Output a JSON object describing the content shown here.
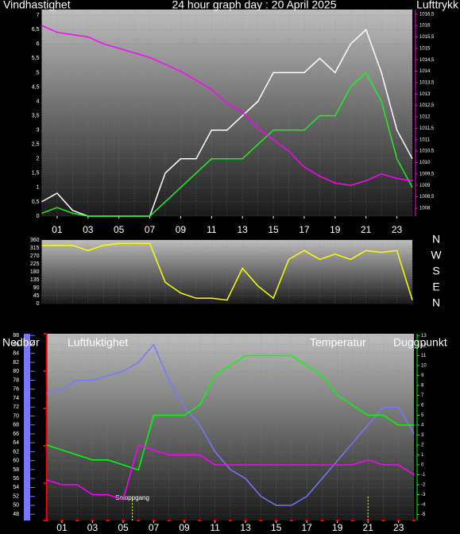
{
  "chart_data": [
    {
      "type": "line",
      "title": "24 hour graph day : 20 April 2025",
      "y_label": "Vindhastighet",
      "y2_label": "Lufttrykk",
      "x": [
        0,
        1,
        2,
        3,
        4,
        5,
        6,
        7,
        8,
        9,
        10,
        11,
        12,
        13,
        14,
        15,
        16,
        17,
        18,
        19,
        20,
        21,
        22,
        23,
        24
      ],
      "xlim": [
        0,
        24
      ],
      "xticks": [
        {
          "value": 1,
          "label": "01"
        },
        {
          "value": 3,
          "label": "03"
        },
        {
          "value": 5,
          "label": "05"
        },
        {
          "value": 7,
          "label": "07"
        },
        {
          "value": 9,
          "label": "09"
        },
        11,
        13,
        15,
        17,
        19,
        21,
        23
      ],
      "ylim": [
        0,
        7.2
      ],
      "yticks": [
        0,
        {
          "value": 0.5,
          "label": "0,5"
        },
        1,
        {
          "value": 1.5,
          "label": "1,5"
        },
        2,
        {
          "value": 2.5,
          "label": "2,5"
        },
        3,
        {
          "value": 3.5,
          "label": "3,5"
        },
        4,
        {
          "value": 4.5,
          "label": "4,5"
        },
        5,
        {
          "value": 5.5,
          "label": "5,5"
        },
        6,
        {
          "value": 6.5,
          "label": "6,5"
        },
        7
      ],
      "y2lim": [
        1007.65,
        1016.7
      ],
      "y2ticks": [
        1008,
        {
          "value": 1008.5,
          "label": "1008,5"
        },
        1009,
        {
          "value": 1009.5,
          "label": "1009,5"
        },
        1010,
        {
          "value": 1010.5,
          "label": "1010,5"
        },
        1011,
        {
          "value": 1011.5,
          "label": "1011,5"
        },
        1012,
        {
          "value": 1012.5,
          "label": "1012,5"
        },
        1013,
        {
          "value": 1013.5,
          "label": "1013,5"
        },
        1014,
        {
          "value": 1014.5,
          "label": "1014,5"
        },
        1015,
        {
          "value": 1015.5,
          "label": "1015,5"
        },
        1016,
        {
          "value": 1016.5,
          "label": "1016,5"
        }
      ],
      "y2color": "#ff00ff",
      "grid": true,
      "series": [
        {
          "color": "#ffffff",
          "values": [
            0.5,
            0.8,
            0.2,
            0,
            0,
            0,
            0,
            0,
            1.5,
            2,
            2,
            3,
            3,
            3.5,
            4,
            5,
            5,
            5,
            5.5,
            5,
            6,
            6.5,
            5,
            3,
            2
          ]
        },
        {
          "color": "#22ee22",
          "values": [
            0.1,
            0.3,
            0.1,
            0,
            0,
            0,
            0,
            0,
            0.5,
            1,
            1.5,
            2,
            2,
            2,
            2.5,
            3,
            3,
            3,
            3.5,
            3.5,
            4.5,
            5,
            4,
            2,
            1
          ]
        },
        {
          "color": "#ff00ff",
          "axis": "y2",
          "values": [
            1016,
            1015.7,
            1015.6,
            1015.5,
            1015.2,
            1015,
            1014.8,
            1014.6,
            1014.3,
            1014,
            1013.6,
            1013.2,
            1012.6,
            1012.2,
            1011.5,
            1011,
            1010.5,
            1009.8,
            1009.4,
            1009.1,
            1009,
            1009.2,
            1009.5,
            1009.3,
            1009.2
          ]
        }
      ]
    },
    {
      "type": "line",
      "x": [
        0,
        1,
        2,
        3,
        4,
        5,
        6,
        7,
        8,
        9,
        10,
        11,
        12,
        13,
        14,
        15,
        16,
        17,
        18,
        19,
        20,
        21,
        22,
        23,
        24
      ],
      "xlim": [
        0,
        24
      ],
      "ylim": [
        0,
        360
      ],
      "yticks": [
        0,
        45,
        90,
        135,
        180,
        225,
        270,
        315,
        360
      ],
      "compass": [
        "N",
        "W",
        "S",
        "E",
        "N"
      ],
      "grid": true,
      "series": [
        {
          "color": "#ffff00",
          "values": [
            330,
            330,
            330,
            300,
            330,
            340,
            340,
            340,
            120,
            60,
            30,
            30,
            20,
            200,
            100,
            30,
            250,
            300,
            250,
            280,
            250,
            300,
            290,
            300,
            20
          ]
        }
      ]
    },
    {
      "type": "line",
      "x": [
        0,
        1,
        2,
        3,
        4,
        5,
        6,
        7,
        8,
        9,
        10,
        11,
        12,
        13,
        14,
        15,
        16,
        17,
        18,
        19,
        20,
        21,
        22,
        23,
        24
      ],
      "xlim": [
        0,
        24
      ],
      "xticks": [
        {
          "value": 1,
          "label": "01"
        },
        {
          "value": 3,
          "label": "03"
        },
        {
          "value": 5,
          "label": "05"
        },
        {
          "value": 7,
          "label": "07"
        },
        {
          "value": 9,
          "label": "09"
        },
        11,
        13,
        15,
        17,
        19,
        21,
        23
      ],
      "ylim": [
        46.6,
        88.4
      ],
      "yticks": [
        48,
        50,
        52,
        54,
        56,
        58,
        60,
        62,
        64,
        66,
        68,
        70,
        72,
        74,
        76,
        78,
        80,
        82,
        84,
        86,
        88
      ],
      "ycolor": "#7777ff",
      "y2lim": [
        -5.6,
        13.2
      ],
      "y2ticks": [
        -5,
        -4,
        -3,
        -2,
        -1,
        0,
        1,
        2,
        3,
        4,
        5,
        6,
        7,
        8,
        9,
        10,
        11,
        12,
        13
      ],
      "y2color": "#00ff00",
      "y3lim": [
        0,
        5
      ],
      "y3ticks": [
        0,
        1,
        2,
        3,
        4,
        5
      ],
      "y3color": "#ff0000",
      "grid": true,
      "annotations": [
        {
          "x": 5.6,
          "label": "Soloppgang"
        }
      ],
      "sunset_x": 21,
      "series": [
        {
          "name": "Nedbør",
          "color": "#ff0000",
          "axis": "y3",
          "bars": true,
          "values": [
            0,
            0,
            0,
            0,
            0,
            0,
            0,
            0,
            0,
            0,
            0,
            0,
            0,
            0,
            0,
            0,
            0,
            0,
            0,
            0,
            0,
            0,
            0,
            0,
            0
          ]
        },
        {
          "name": "Luftfuktighet",
          "color": "#7777ff",
          "values": [
            75,
            76,
            78,
            78,
            79,
            80,
            82,
            86,
            78,
            72,
            68,
            62,
            58,
            56,
            52,
            50,
            50,
            52,
            56,
            60,
            64,
            68,
            72,
            72,
            66
          ]
        },
        {
          "name": "Temperatur",
          "color": "#00ff00",
          "axis": "y2",
          "values": [
            2,
            1.5,
            1,
            0.5,
            0.5,
            0,
            -0.5,
            5,
            5,
            5,
            6,
            9,
            10,
            11,
            11,
            11,
            11,
            10,
            9,
            7,
            6,
            5,
            5,
            4,
            4
          ]
        },
        {
          "name": "Duggpunkt",
          "color": "#ff00ff",
          "axis": "y2",
          "values": [
            -1.5,
            -2,
            -2,
            -3,
            -3,
            -3.5,
            2,
            1.5,
            1,
            1,
            1,
            0,
            0,
            0,
            0,
            0,
            0,
            0,
            0,
            0,
            0,
            0.5,
            0,
            0,
            -1
          ]
        }
      ]
    }
  ]
}
